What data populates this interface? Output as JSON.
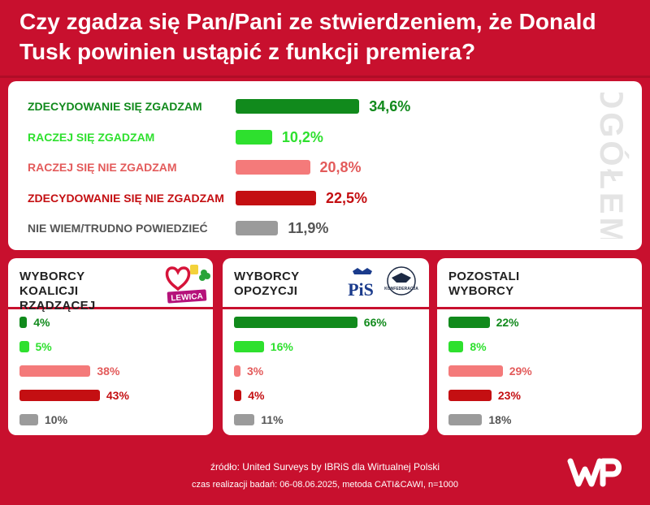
{
  "title": {
    "line1": "Czy zgadza się Pan/Pani ze stwierdzeniem, że Donald",
    "line2": "Tusk powinien ustąpić z funkcji premiera?"
  },
  "colors": {
    "background": "#c8102e",
    "strongly_agree": "#118a1c",
    "agree": "#2ee02e",
    "disagree": "#f47a7a",
    "strongly_disagree": "#c40f12",
    "dont_know": "#9b9b9b"
  },
  "chart_data": [
    {
      "type": "bar",
      "title": "OGÓŁEM",
      "categories": [
        "ZDECYDOWANIE SIĘ ZGADZAM",
        "RACZEJ SIĘ ZGADZAM",
        "RACZEJ SIĘ NIE ZGADZAM",
        "ZDECYDOWANIE SIĘ NIE ZGADZAM",
        "NIE WIEM/TRUDNO POWIEDZIEĆ"
      ],
      "values": [
        34.6,
        10.2,
        20.8,
        22.5,
        11.9
      ],
      "value_labels": [
        "34,6%",
        "10,2%",
        "20,8%",
        "22,5%",
        "11,9%"
      ],
      "unit": "%"
    },
    {
      "type": "bar",
      "title_lines": [
        "WYBORCY",
        "KOALICJI RZĄDZĄCEJ"
      ],
      "logo_text": "LEWICA",
      "categories": [
        "ZDECYDOWANIE SIĘ ZGADZAM",
        "RACZEJ SIĘ ZGADZAM",
        "RACZEJ SIĘ NIE ZGADZAM",
        "ZDECYDOWANIE SIĘ NIE ZGADZAM",
        "NIE WIEM/TRUDNO POWIEDZIEĆ"
      ],
      "values": [
        4,
        5,
        38,
        43,
        10
      ],
      "value_labels": [
        "4%",
        "5%",
        "38%",
        "43%",
        "10%"
      ]
    },
    {
      "type": "bar",
      "title_lines": [
        "WYBORCY",
        "OPOZYCJI"
      ],
      "logo_text": "PiS",
      "logo_text2": "KONFEDERACJA",
      "categories": [
        "ZDECYDOWANIE SIĘ ZGADZAM",
        "RACZEJ SIĘ ZGADZAM",
        "RACZEJ SIĘ NIE ZGADZAM",
        "ZDECYDOWANIE SIĘ NIE ZGADZAM",
        "NIE WIEM/TRUDNO POWIEDZIEĆ"
      ],
      "values": [
        66,
        16,
        3,
        4,
        11
      ],
      "value_labels": [
        "66%",
        "16%",
        "3%",
        "4%",
        "11%"
      ]
    },
    {
      "type": "bar",
      "title_lines": [
        "POZOSTALI",
        "WYBORCY"
      ],
      "categories": [
        "ZDECYDOWANIE SIĘ ZGADZAM",
        "RACZEJ SIĘ ZGADZAM",
        "RACZEJ SIĘ NIE ZGADZAM",
        "ZDECYDOWANIE SIĘ NIE ZGADZAM",
        "NIE WIEM/TRUDNO POWIEDZIEĆ"
      ],
      "values": [
        22,
        8,
        29,
        23,
        18
      ],
      "value_labels": [
        "22%",
        "8%",
        "29%",
        "23%",
        "18%"
      ]
    }
  ],
  "footer": {
    "source": "źródło: United Surveys by IBRiS dla Wirtualnej Polski",
    "details": "czas realizacji badań: 06-08.06.2025, metoda CATI&CAWI, n=1000"
  },
  "logo": {
    "text": "WP"
  }
}
